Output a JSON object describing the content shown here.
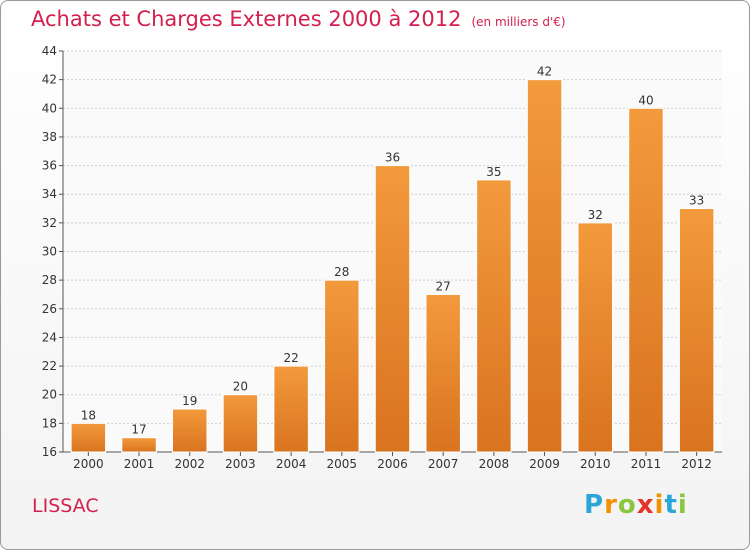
{
  "chart_data": {
    "type": "bar",
    "title": "Achats et Charges Externes 2000 à 2012",
    "subtitle": "(en milliers d'€)",
    "categories": [
      "2000",
      "2001",
      "2002",
      "2003",
      "2004",
      "2005",
      "2006",
      "2007",
      "2008",
      "2009",
      "2010",
      "2011",
      "2012"
    ],
    "values": [
      18,
      17,
      19,
      20,
      22,
      28,
      36,
      27,
      35,
      42,
      32,
      40,
      33
    ],
    "ylim": [
      16,
      44
    ],
    "yticks": [
      16,
      18,
      20,
      22,
      24,
      26,
      28,
      30,
      32,
      34,
      36,
      38,
      40,
      42,
      44
    ],
    "grid": true,
    "bar_color": "#f39a3c",
    "bar_color_dark": "#d9731f"
  },
  "location": "LISSAC",
  "logo": {
    "letters": [
      "P",
      "r",
      "o",
      "x",
      "i",
      "t",
      "i"
    ]
  }
}
